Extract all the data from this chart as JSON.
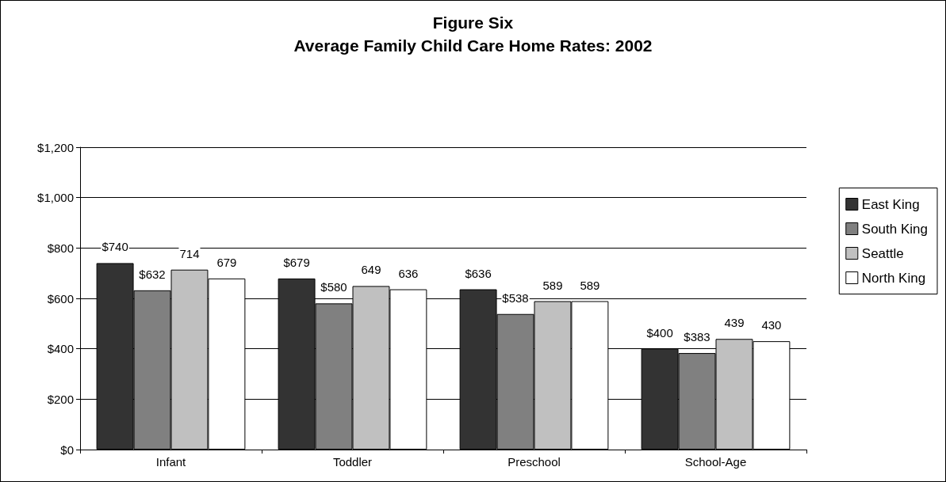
{
  "chart_data": {
    "type": "bar",
    "title": "Figure Six",
    "subtitle": "Average Family Child Care Home Rates: 2002",
    "categories": [
      "Infant",
      "Toddler",
      "Preschool",
      "School-Age"
    ],
    "series": [
      {
        "name": "East King",
        "color": "#333333",
        "values": [
          740,
          679,
          636,
          400
        ],
        "value_labels": [
          "$740",
          "$679",
          "$636",
          "$400"
        ]
      },
      {
        "name": "South King",
        "color": "#808080",
        "values": [
          632,
          580,
          538,
          383
        ],
        "value_labels": [
          "$632",
          "$580",
          "$538",
          "$383"
        ]
      },
      {
        "name": "Seattle",
        "color": "#c0c0c0",
        "values": [
          714,
          649,
          589,
          439
        ],
        "value_labels": [
          "714",
          "649",
          "589",
          "439"
        ]
      },
      {
        "name": "North King",
        "color": "#ffffff",
        "values": [
          679,
          636,
          589,
          430
        ],
        "value_labels": [
          "679",
          "636",
          "589",
          "430"
        ]
      }
    ],
    "ylim": [
      0,
      1200
    ],
    "yticks": [
      {
        "value": 0,
        "label": "$0"
      },
      {
        "value": 200,
        "label": "$200"
      },
      {
        "value": 400,
        "label": "$400"
      },
      {
        "value": 600,
        "label": "$600"
      },
      {
        "value": 800,
        "label": "$800"
      },
      {
        "value": 1000,
        "label": "$1,000"
      },
      {
        "value": 1200,
        "label": "$1,200"
      }
    ],
    "grid": "y",
    "legend": "right"
  }
}
